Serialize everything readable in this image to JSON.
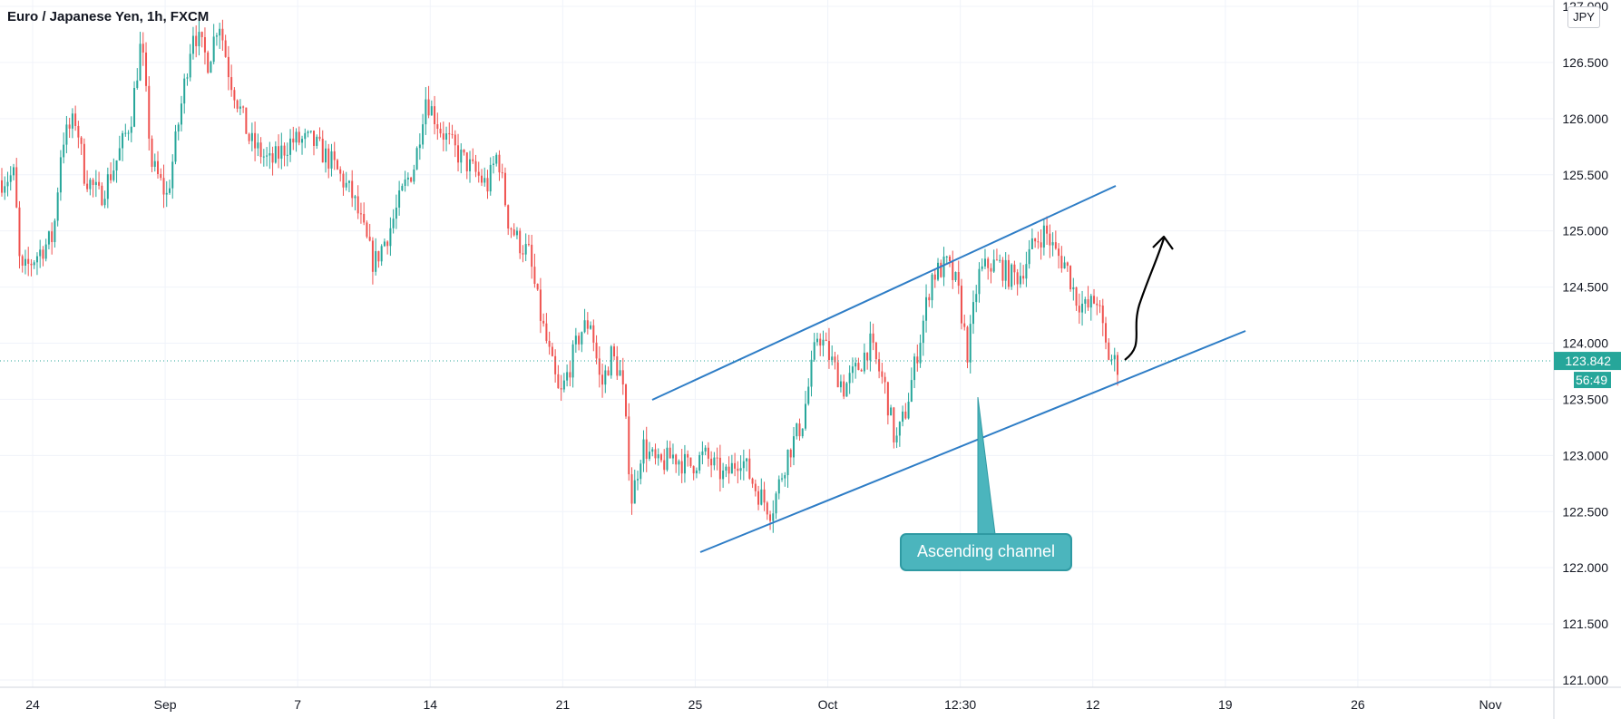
{
  "header": {
    "symbol_title": "Euro / Japanese Yen, 1h, FXCM",
    "currency_button": "JPY"
  },
  "colors": {
    "up": "#26a69a",
    "down": "#ef5350",
    "channel": "#2e7dc6",
    "annotation_fill": "#4bb5bd",
    "price_line": "#26a69a",
    "grid": "#f0f3fa",
    "axis_text": "#131722"
  },
  "chart_data": {
    "type": "candlestick",
    "title": "Euro / Japanese Yen, 1h, FXCM",
    "ylim": [
      121.0,
      127.0
    ],
    "y_ticks": [
      "121.000",
      "121.500",
      "122.000",
      "122.500",
      "123.000",
      "123.500",
      "124.000",
      "124.500",
      "125.000",
      "125.500",
      "126.000",
      "126.500",
      "127.000"
    ],
    "x_ticks": [
      "24",
      "Sep",
      "7",
      "14",
      "21",
      "25",
      "Oct",
      "12:30",
      "12",
      "19",
      "26",
      "Nov"
    ],
    "last_price": "123.842",
    "countdown": "56:49",
    "grid": true,
    "price_path": [
      {
        "x": 0,
        "y": 125.45
      },
      {
        "x": 0.012,
        "y": 125.5
      },
      {
        "x": 0.018,
        "y": 124.6
      },
      {
        "x": 0.035,
        "y": 124.8
      },
      {
        "x": 0.05,
        "y": 124.95
      },
      {
        "x": 0.058,
        "y": 125.8
      },
      {
        "x": 0.072,
        "y": 126.0
      },
      {
        "x": 0.08,
        "y": 125.5
      },
      {
        "x": 0.095,
        "y": 125.3
      },
      {
        "x": 0.11,
        "y": 125.6
      },
      {
        "x": 0.125,
        "y": 126.0
      },
      {
        "x": 0.135,
        "y": 126.7
      },
      {
        "x": 0.145,
        "y": 125.6
      },
      {
        "x": 0.16,
        "y": 125.3
      },
      {
        "x": 0.175,
        "y": 126.2
      },
      {
        "x": 0.185,
        "y": 126.8
      },
      {
        "x": 0.2,
        "y": 126.5
      },
      {
        "x": 0.21,
        "y": 126.9
      },
      {
        "x": 0.22,
        "y": 126.4
      },
      {
        "x": 0.24,
        "y": 125.8
      },
      {
        "x": 0.26,
        "y": 125.6
      },
      {
        "x": 0.28,
        "y": 125.8
      },
      {
        "x": 0.3,
        "y": 125.8
      },
      {
        "x": 0.32,
        "y": 125.6
      },
      {
        "x": 0.34,
        "y": 125.3
      },
      {
        "x": 0.36,
        "y": 124.7
      },
      {
        "x": 0.375,
        "y": 125.0
      },
      {
        "x": 0.39,
        "y": 125.4
      },
      {
        "x": 0.4,
        "y": 125.6
      },
      {
        "x": 0.41,
        "y": 126.2
      },
      {
        "x": 0.425,
        "y": 125.9
      },
      {
        "x": 0.44,
        "y": 125.7
      },
      {
        "x": 0.46,
        "y": 125.5
      },
      {
        "x": 0.47,
        "y": 125.4
      },
      {
        "x": 0.48,
        "y": 125.7
      },
      {
        "x": 0.49,
        "y": 125.1
      },
      {
        "x": 0.5,
        "y": 124.9
      },
      {
        "x": 0.51,
        "y": 124.8
      },
      {
        "x": 0.52,
        "y": 124.3
      },
      {
        "x": 0.53,
        "y": 123.9
      },
      {
        "x": 0.54,
        "y": 123.5
      },
      {
        "x": 0.55,
        "y": 123.8
      },
      {
        "x": 0.56,
        "y": 124.1
      },
      {
        "x": 0.57,
        "y": 124.2
      },
      {
        "x": 0.58,
        "y": 123.6
      },
      {
        "x": 0.59,
        "y": 123.9
      },
      {
        "x": 0.6,
        "y": 123.7
      },
      {
        "x": 0.61,
        "y": 122.6
      },
      {
        "x": 0.62,
        "y": 123.1
      },
      {
        "x": 0.635,
        "y": 122.9
      },
      {
        "x": 0.65,
        "y": 123.0
      },
      {
        "x": 0.665,
        "y": 122.9
      },
      {
        "x": 0.68,
        "y": 123.0
      },
      {
        "x": 0.7,
        "y": 122.8
      },
      {
        "x": 0.715,
        "y": 123.0
      },
      {
        "x": 0.73,
        "y": 122.7
      },
      {
        "x": 0.745,
        "y": 122.5
      },
      {
        "x": 0.76,
        "y": 123.0
      },
      {
        "x": 0.775,
        "y": 123.3
      },
      {
        "x": 0.79,
        "y": 124.1
      },
      {
        "x": 0.8,
        "y": 123.9
      },
      {
        "x": 0.815,
        "y": 123.6
      },
      {
        "x": 0.83,
        "y": 123.8
      },
      {
        "x": 0.84,
        "y": 124.0
      },
      {
        "x": 0.855,
        "y": 123.6
      },
      {
        "x": 0.865,
        "y": 123.1
      },
      {
        "x": 0.875,
        "y": 123.4
      },
      {
        "x": 0.89,
        "y": 124.1
      },
      {
        "x": 0.9,
        "y": 124.6
      },
      {
        "x": 0.915,
        "y": 124.7
      },
      {
        "x": 0.925,
        "y": 124.5
      },
      {
        "x": 0.935,
        "y": 123.9
      },
      {
        "x": 0.945,
        "y": 124.6
      },
      {
        "x": 0.955,
        "y": 124.7
      },
      {
        "x": 0.965,
        "y": 124.7
      },
      {
        "x": 0.975,
        "y": 124.6
      },
      {
        "x": 0.985,
        "y": 124.6
      },
      {
        "x": 1.0,
        "y": 124.9
      },
      {
        "x": 1.01,
        "y": 125.0
      },
      {
        "x": 1.02,
        "y": 124.8
      },
      {
        "x": 1.03,
        "y": 124.7
      },
      {
        "x": 1.04,
        "y": 124.4
      },
      {
        "x": 1.05,
        "y": 124.3
      },
      {
        "x": 1.06,
        "y": 124.4
      },
      {
        "x": 1.07,
        "y": 123.9
      },
      {
        "x": 1.08,
        "y": 123.8
      }
    ],
    "annotations": {
      "label": "Ascending channel"
    }
  }
}
